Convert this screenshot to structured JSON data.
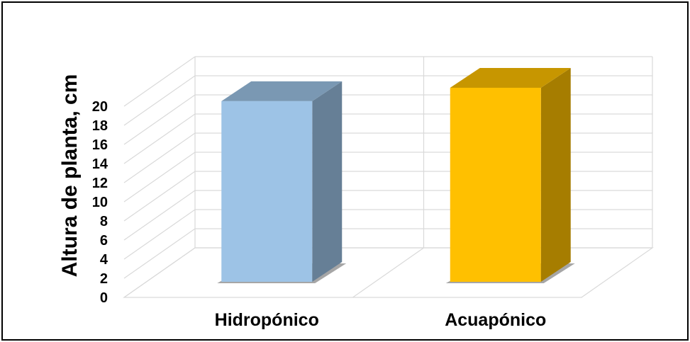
{
  "chart_data": {
    "type": "bar",
    "style": "3d",
    "categories": [
      "Hidropónico",
      "Acuapónico"
    ],
    "values": [
      18.9,
      20.3
    ],
    "colors": [
      "#9DC3E6",
      "#FFC000"
    ],
    "title": "",
    "xlabel": "",
    "ylabel": "Altura de planta, cm",
    "ylim": [
      0,
      20
    ],
    "yticks": [
      0,
      2,
      4,
      6,
      8,
      10,
      12,
      14,
      16,
      18,
      20
    ],
    "grid": true,
    "legend": "none"
  }
}
